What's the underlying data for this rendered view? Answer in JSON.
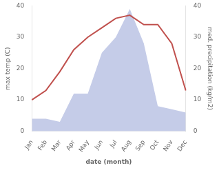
{
  "chart_data": {
    "type": "line",
    "xlabel": "date (month)",
    "ylabel": "max temp (C)",
    "y2label": "med. precipitation (kg/m2)",
    "categories": [
      "Jan",
      "Feb",
      "Mar",
      "Apr",
      "May",
      "Jun",
      "Jul",
      "Aug",
      "Sep",
      "Oct",
      "Nov",
      "Dec"
    ],
    "series": [
      {
        "type": "area",
        "color": "#c5cce8",
        "axis": "y2",
        "values": [
          4,
          4,
          3,
          12,
          12,
          25,
          30,
          39,
          28,
          8,
          7,
          6
        ]
      },
      {
        "type": "line",
        "color": "#c0504d",
        "values": [
          10,
          13,
          19,
          26,
          30,
          33,
          36,
          37,
          34,
          34,
          28,
          13
        ]
      }
    ],
    "ylim": [
      0,
      40
    ],
    "yticks": [
      0,
      10,
      20,
      30,
      40
    ],
    "y2lim": [
      0,
      40
    ],
    "y2ticks": [
      0,
      10,
      20,
      30,
      40
    ],
    "grid": false
  }
}
